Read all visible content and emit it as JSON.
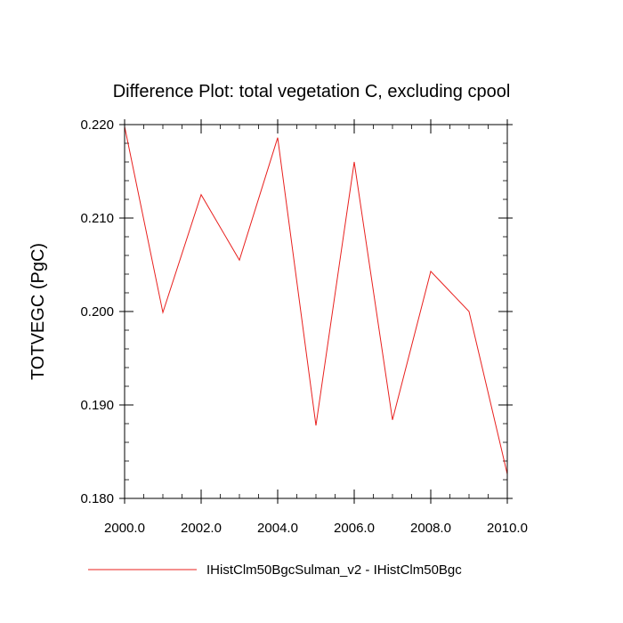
{
  "chart_data": {
    "type": "line",
    "title": "Difference Plot: total vegetation C, excluding cpool",
    "xlabel": "",
    "ylabel": "TOTVEGC  (PgC)",
    "xlim": [
      2000.0,
      2010.0
    ],
    "ylim": [
      0.18,
      0.22
    ],
    "x_ticks": [
      2000.0,
      2002.0,
      2004.0,
      2006.0,
      2008.0,
      2010.0
    ],
    "x_tick_labels": [
      "2000.0",
      "2002.0",
      "2004.0",
      "2006.0",
      "2008.0",
      "2010.0"
    ],
    "y_ticks": [
      0.18,
      0.19,
      0.2,
      0.21,
      0.22
    ],
    "y_tick_labels": [
      "0.180",
      "0.190",
      "0.200",
      "0.210",
      "0.220"
    ],
    "grid": false,
    "legend_position": "bottom",
    "series": [
      {
        "name": "IHistClm50BgcSulman_v2 - IHistClm50Bgc",
        "color": "#e8201e",
        "x": [
          2000,
          2001,
          2002,
          2003,
          2004,
          2005,
          2006,
          2007,
          2008,
          2009,
          2010
        ],
        "y": [
          0.2198,
          0.1999,
          0.2125,
          0.2055,
          0.2186,
          0.1878,
          0.216,
          0.1884,
          0.2043,
          0.2,
          0.1826
        ]
      }
    ]
  }
}
